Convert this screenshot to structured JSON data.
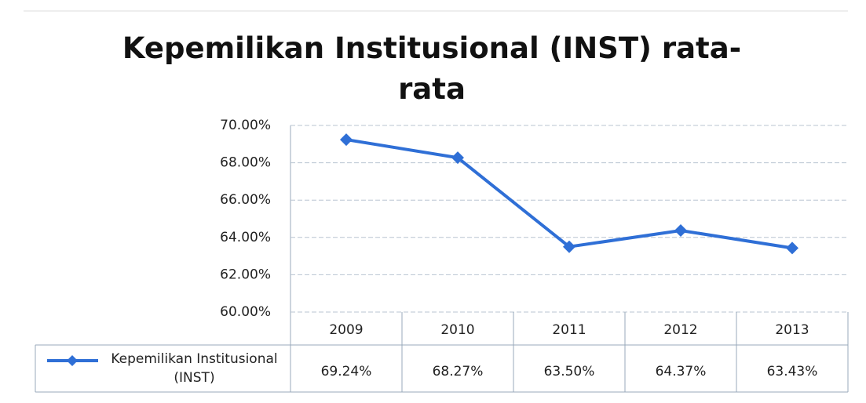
{
  "chart_data": {
    "type": "line",
    "title": "Kepemilikan Institusional (INST) rata-rata",
    "categories": [
      "2009",
      "2010",
      "2011",
      "2012",
      "2013"
    ],
    "series": [
      {
        "name": "Kepemilikan Institusional (INST)",
        "color": "#2f6fd6",
        "values": [
          69.24,
          68.27,
          63.5,
          64.37,
          63.43
        ],
        "value_labels": [
          "69.24%",
          "68.27%",
          "63.50%",
          "64.37%",
          "63.43%"
        ]
      }
    ],
    "ylim": [
      60,
      70
    ],
    "yticks": [
      {
        "value": 60,
        "label": "60.00%"
      },
      {
        "value": 62,
        "label": "62.00%"
      },
      {
        "value": 64,
        "label": "64.00%"
      },
      {
        "value": 66,
        "label": "66.00%"
      },
      {
        "value": 68,
        "label": "68.00%"
      },
      {
        "value": 70,
        "label": "70.00%"
      }
    ],
    "grid": true
  }
}
